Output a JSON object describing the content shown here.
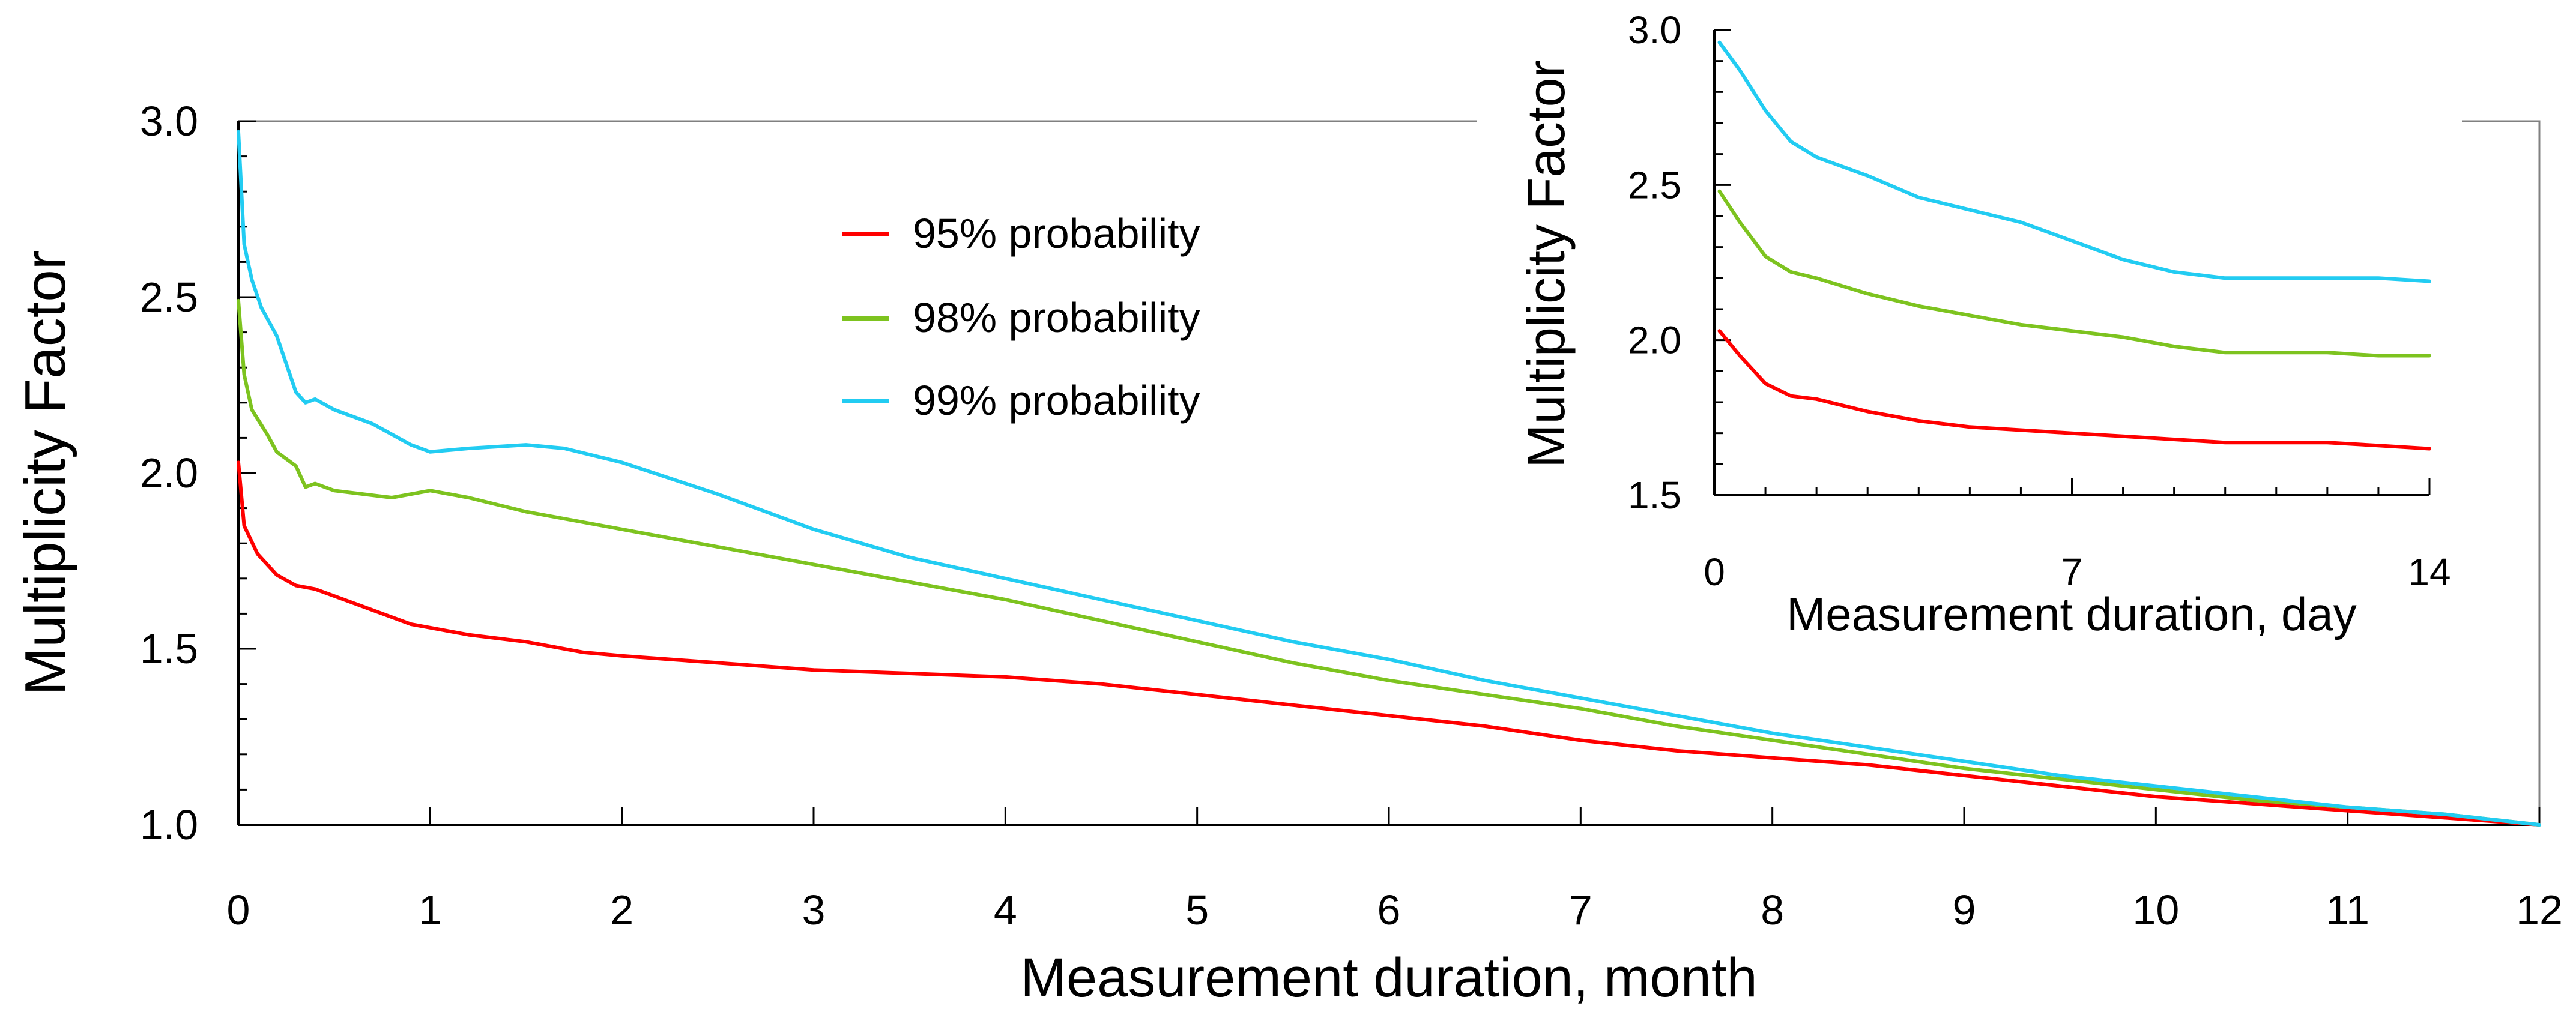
{
  "colors": {
    "background": "#ffffff",
    "axis": "#000000",
    "frame": "#808080",
    "series_95": "#ff0000",
    "series_98": "#7dc31f",
    "series_99": "#22ccf2"
  },
  "chart_data": [
    {
      "type": "line",
      "xlabel": "Measurement duration, month",
      "ylabel": "Multiplicity Factor",
      "xlim": [
        0,
        12
      ],
      "ylim": [
        1.0,
        3.0
      ],
      "x_ticks": [
        "0",
        "1",
        "2",
        "3",
        "4",
        "5",
        "6",
        "7",
        "8",
        "9",
        "10",
        "11",
        "12"
      ],
      "y_ticks": [
        "1.0",
        "1.5",
        "2.0",
        "2.5",
        "3.0"
      ],
      "grid": false,
      "legend_position": "top-left-center",
      "series": [
        {
          "name": "95% probability",
          "color": "#ff0000",
          "points": [
            [
              0.0,
              2.03
            ],
            [
              0.03,
              1.85
            ],
            [
              0.1,
              1.77
            ],
            [
              0.2,
              1.71
            ],
            [
              0.3,
              1.68
            ],
            [
              0.4,
              1.67
            ],
            [
              0.5,
              1.65
            ],
            [
              0.7,
              1.61
            ],
            [
              0.9,
              1.57
            ],
            [
              1.0,
              1.56
            ],
            [
              1.2,
              1.54
            ],
            [
              1.5,
              1.52
            ],
            [
              1.8,
              1.49
            ],
            [
              2.0,
              1.48
            ],
            [
              2.5,
              1.46
            ],
            [
              3.0,
              1.44
            ],
            [
              3.5,
              1.43
            ],
            [
              4.0,
              1.42
            ],
            [
              4.5,
              1.4
            ],
            [
              5.0,
              1.37
            ],
            [
              5.5,
              1.34
            ],
            [
              6.0,
              1.31
            ],
            [
              6.5,
              1.28
            ],
            [
              7.0,
              1.24
            ],
            [
              7.5,
              1.21
            ],
            [
              8.0,
              1.19
            ],
            [
              8.5,
              1.17
            ],
            [
              9.0,
              1.14
            ],
            [
              9.5,
              1.11
            ],
            [
              10.0,
              1.08
            ],
            [
              10.5,
              1.06
            ],
            [
              11.0,
              1.04
            ],
            [
              11.5,
              1.02
            ],
            [
              12.0,
              1.0
            ]
          ]
        },
        {
          "name": "98% probability",
          "color": "#7dc31f",
          "points": [
            [
              0.0,
              2.49
            ],
            [
              0.03,
              2.28
            ],
            [
              0.07,
              2.18
            ],
            [
              0.15,
              2.11
            ],
            [
              0.2,
              2.06
            ],
            [
              0.3,
              2.02
            ],
            [
              0.35,
              1.96
            ],
            [
              0.4,
              1.97
            ],
            [
              0.5,
              1.95
            ],
            [
              0.8,
              1.93
            ],
            [
              1.0,
              1.95
            ],
            [
              1.2,
              1.93
            ],
            [
              1.5,
              1.89
            ],
            [
              2.0,
              1.84
            ],
            [
              2.5,
              1.79
            ],
            [
              3.0,
              1.74
            ],
            [
              3.5,
              1.69
            ],
            [
              4.0,
              1.64
            ],
            [
              4.5,
              1.58
            ],
            [
              5.0,
              1.52
            ],
            [
              5.5,
              1.46
            ],
            [
              6.0,
              1.41
            ],
            [
              6.5,
              1.37
            ],
            [
              7.0,
              1.33
            ],
            [
              7.5,
              1.28
            ],
            [
              8.0,
              1.24
            ],
            [
              8.5,
              1.2
            ],
            [
              9.0,
              1.16
            ],
            [
              9.5,
              1.13
            ],
            [
              10.0,
              1.1
            ],
            [
              10.5,
              1.07
            ],
            [
              11.0,
              1.05
            ],
            [
              11.5,
              1.03
            ],
            [
              12.0,
              1.0
            ]
          ]
        },
        {
          "name": "99% probability",
          "color": "#22ccf2",
          "points": [
            [
              0.0,
              2.97
            ],
            [
              0.03,
              2.65
            ],
            [
              0.07,
              2.55
            ],
            [
              0.12,
              2.47
            ],
            [
              0.2,
              2.39
            ],
            [
              0.3,
              2.23
            ],
            [
              0.35,
              2.2
            ],
            [
              0.4,
              2.21
            ],
            [
              0.5,
              2.18
            ],
            [
              0.7,
              2.14
            ],
            [
              0.9,
              2.08
            ],
            [
              1.0,
              2.06
            ],
            [
              1.2,
              2.07
            ],
            [
              1.5,
              2.08
            ],
            [
              1.7,
              2.07
            ],
            [
              2.0,
              2.03
            ],
            [
              2.5,
              1.94
            ],
            [
              3.0,
              1.84
            ],
            [
              3.5,
              1.76
            ],
            [
              4.0,
              1.7
            ],
            [
              4.5,
              1.64
            ],
            [
              5.0,
              1.58
            ],
            [
              5.5,
              1.52
            ],
            [
              6.0,
              1.47
            ],
            [
              6.5,
              1.41
            ],
            [
              7.0,
              1.36
            ],
            [
              7.5,
              1.31
            ],
            [
              8.0,
              1.26
            ],
            [
              8.5,
              1.22
            ],
            [
              9.0,
              1.18
            ],
            [
              9.5,
              1.14
            ],
            [
              10.0,
              1.11
            ],
            [
              10.5,
              1.08
            ],
            [
              11.0,
              1.05
            ],
            [
              11.5,
              1.03
            ],
            [
              12.0,
              1.0
            ]
          ]
        }
      ]
    },
    {
      "type": "line",
      "xlabel": "Measurement duration, day",
      "ylabel": "Multiplicity Factor",
      "xlim": [
        0,
        14
      ],
      "ylim": [
        1.5,
        3.0
      ],
      "x_ticks": [
        "0",
        "7",
        "14"
      ],
      "y_ticks": [
        "1.5",
        "2.0",
        "2.5",
        "3.0"
      ],
      "grid": false,
      "series": [
        {
          "name": "95% probability",
          "color": "#ff0000",
          "points": [
            [
              0.1,
              2.03
            ],
            [
              0.5,
              1.95
            ],
            [
              1.0,
              1.86
            ],
            [
              1.5,
              1.82
            ],
            [
              2.0,
              1.81
            ],
            [
              3.0,
              1.77
            ],
            [
              4.0,
              1.74
            ],
            [
              5.0,
              1.72
            ],
            [
              6.0,
              1.71
            ],
            [
              7.0,
              1.7
            ],
            [
              8.0,
              1.69
            ],
            [
              9.0,
              1.68
            ],
            [
              10.0,
              1.67
            ],
            [
              11.0,
              1.67
            ],
            [
              12.0,
              1.67
            ],
            [
              13.0,
              1.66
            ],
            [
              14.0,
              1.65
            ]
          ]
        },
        {
          "name": "98% probability",
          "color": "#7dc31f",
          "points": [
            [
              0.1,
              2.48
            ],
            [
              0.5,
              2.38
            ],
            [
              1.0,
              2.27
            ],
            [
              1.5,
              2.22
            ],
            [
              2.0,
              2.2
            ],
            [
              3.0,
              2.15
            ],
            [
              4.0,
              2.11
            ],
            [
              5.0,
              2.08
            ],
            [
              6.0,
              2.05
            ],
            [
              7.0,
              2.03
            ],
            [
              8.0,
              2.01
            ],
            [
              9.0,
              1.98
            ],
            [
              10.0,
              1.96
            ],
            [
              11.0,
              1.96
            ],
            [
              12.0,
              1.96
            ],
            [
              13.0,
              1.95
            ],
            [
              14.0,
              1.95
            ]
          ]
        },
        {
          "name": "99% probability",
          "color": "#22ccf2",
          "points": [
            [
              0.1,
              2.96
            ],
            [
              0.5,
              2.87
            ],
            [
              1.0,
              2.74
            ],
            [
              1.5,
              2.64
            ],
            [
              2.0,
              2.59
            ],
            [
              3.0,
              2.53
            ],
            [
              4.0,
              2.46
            ],
            [
              5.0,
              2.42
            ],
            [
              6.0,
              2.38
            ],
            [
              7.0,
              2.32
            ],
            [
              8.0,
              2.26
            ],
            [
              9.0,
              2.22
            ],
            [
              10.0,
              2.2
            ],
            [
              11.0,
              2.2
            ],
            [
              12.0,
              2.2
            ],
            [
              13.0,
              2.2
            ],
            [
              14.0,
              2.19
            ]
          ]
        }
      ]
    }
  ]
}
